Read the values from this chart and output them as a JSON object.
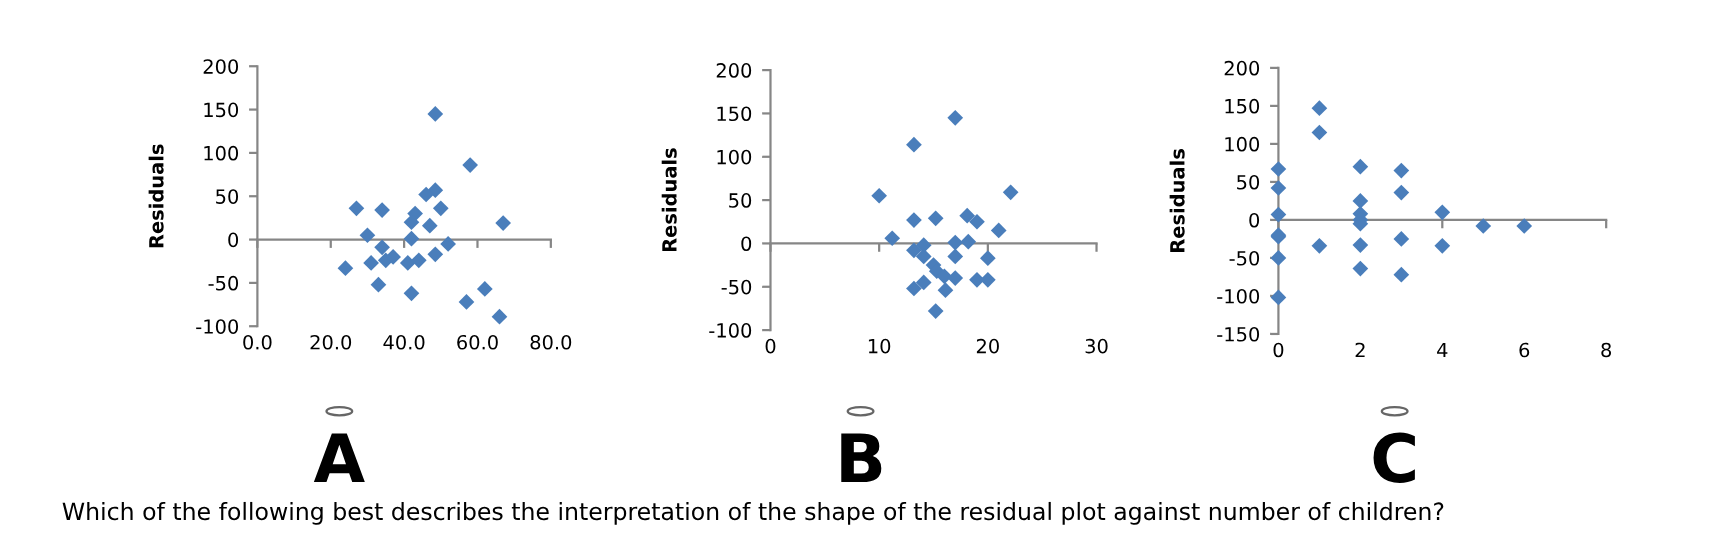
{
  "chart_data": [
    {
      "type": "scatter",
      "ylabel": "Residuals",
      "marker": "diamond",
      "xlim": [
        0,
        80
      ],
      "ylim": [
        -100,
        200
      ],
      "xticks": [
        {
          "value": 0,
          "label": "0.0"
        },
        {
          "value": 20,
          "label": "20.0"
        },
        {
          "value": 40,
          "label": "40.0"
        },
        {
          "value": 60,
          "label": "60.0"
        },
        {
          "value": 80,
          "label": "80.0"
        }
      ],
      "yticks": [
        -100,
        -50,
        0,
        50,
        100,
        150,
        200
      ],
      "series": [
        {
          "color": "#4a7ebb",
          "x": [
            48.5,
            58,
            27,
            34,
            48.5,
            46,
            50,
            67,
            43,
            42,
            47,
            30,
            42,
            52,
            34,
            48.5,
            24,
            31,
            35,
            41,
            44,
            33,
            42,
            57,
            62,
            66,
            37
          ],
          "values": [
            145,
            86,
            36,
            34,
            57,
            52,
            36,
            19,
            30,
            20,
            16,
            5,
            1,
            -5,
            -9,
            -17,
            -33,
            -27,
            -24,
            -27,
            -24,
            -52,
            -62,
            -72,
            -57,
            -89,
            -20
          ]
        }
      ],
      "annotations": [
        "A"
      ]
    },
    {
      "type": "scatter",
      "ylabel": "Residuals",
      "marker": "diamond",
      "xlim": [
        0,
        30
      ],
      "ylim": [
        -100,
        200
      ],
      "xticks": [
        0,
        10,
        20,
        30
      ],
      "yticks": [
        -100,
        -50,
        0,
        50,
        100,
        150,
        200
      ],
      "series": [
        {
          "color": "#4a7ebb",
          "x": [
            17,
            13.2,
            10,
            22.1,
            11.2,
            13.2,
            15.2,
            18.1,
            19,
            21,
            17,
            18.2,
            13.2,
            14.1,
            14.1,
            15,
            15.3,
            17,
            20,
            16,
            17,
            19,
            20,
            13.2,
            14.1,
            16.1,
            15.2
          ],
          "values": [
            145,
            114,
            55,
            59,
            6,
            27,
            29,
            32,
            25,
            15,
            1,
            2,
            -8,
            -2,
            -15,
            -25,
            -32,
            -15,
            -17,
            -38,
            -40,
            -42,
            -42,
            -52,
            -45,
            -54,
            -78
          ]
        }
      ],
      "annotations": [
        "B"
      ]
    },
    {
      "type": "scatter",
      "ylabel": "Residuals",
      "marker": "diamond",
      "xlim": [
        0,
        8
      ],
      "ylim": [
        -150,
        200
      ],
      "xticks": [
        0,
        2,
        4,
        6,
        8
      ],
      "yticks": [
        -150,
        -100,
        -50,
        0,
        50,
        100,
        150,
        200
      ],
      "series": [
        {
          "color": "#4a7ebb",
          "x": [
            0,
            0,
            0,
            0,
            0,
            0,
            0,
            1,
            1,
            1,
            2,
            2,
            2,
            2,
            2,
            2,
            2,
            3,
            3,
            3,
            3,
            4,
            4,
            5,
            6
          ],
          "values": [
            67,
            42,
            7,
            -22,
            -20,
            -50,
            -102,
            147,
            115,
            -34,
            70,
            25,
            8,
            0,
            -5,
            -33,
            -64,
            65,
            36,
            -25,
            -72,
            10,
            -34,
            -8,
            -8
          ]
        }
      ],
      "annotations": [
        "C",
        "Which of the following best describes the interpretation of the shape of the residual plot against number of children?"
      ]
    }
  ]
}
